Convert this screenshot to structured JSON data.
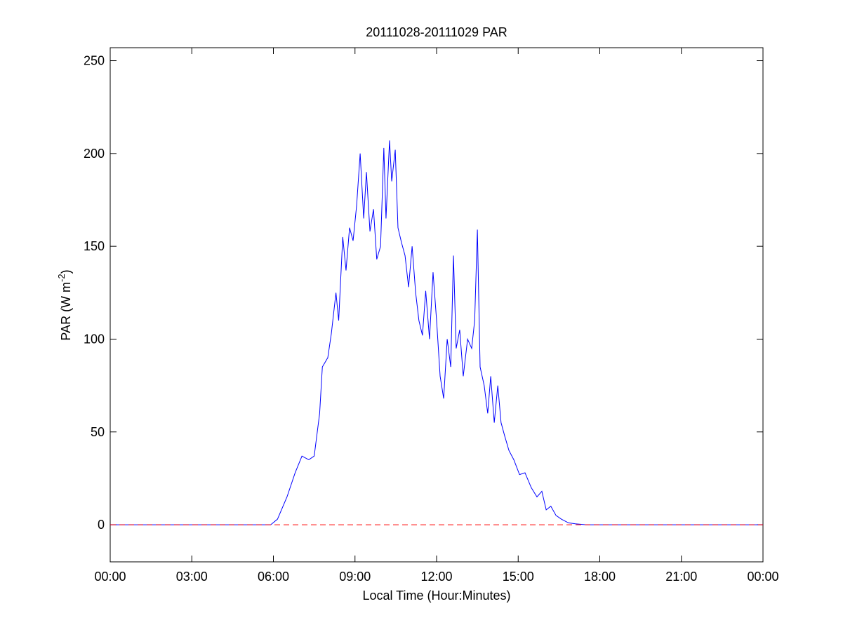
{
  "chart_data": {
    "type": "line",
    "title": "20111028-20111029 PAR",
    "xlabel": "Local Time (Hour:Minutes)",
    "ylabel": {
      "text": "PAR (W m",
      "superscript": "-2",
      "suffix": ")"
    },
    "xlim": [
      0,
      24
    ],
    "xticks": [
      {
        "value": 0,
        "label": "00:00"
      },
      {
        "value": 3,
        "label": "03:00"
      },
      {
        "value": 6,
        "label": "06:00"
      },
      {
        "value": 9,
        "label": "09:00"
      },
      {
        "value": 12,
        "label": "12:00"
      },
      {
        "value": 15,
        "label": "15:00"
      },
      {
        "value": 18,
        "label": "18:00"
      },
      {
        "value": 21,
        "label": "21:00"
      },
      {
        "value": 24,
        "label": "00:00"
      }
    ],
    "ylim": [
      -20,
      257
    ],
    "yticks": [
      0,
      50,
      100,
      150,
      200,
      250
    ],
    "grid": false,
    "series": [
      {
        "color": "#0000ff",
        "dashed": false,
        "x": [
          0,
          5.9,
          6.15,
          6.5,
          6.8,
          7.05,
          7.3,
          7.5,
          7.7,
          7.8,
          8.0,
          8.13,
          8.3,
          8.4,
          8.55,
          8.67,
          8.8,
          8.93,
          9.06,
          9.19,
          9.32,
          9.42,
          9.55,
          9.68,
          9.8,
          9.94,
          10.06,
          10.14,
          10.27,
          10.35,
          10.48,
          10.58,
          10.71,
          10.84,
          10.97,
          11.1,
          11.23,
          11.35,
          11.48,
          11.6,
          11.74,
          11.87,
          12.0,
          12.13,
          12.26,
          12.39,
          12.52,
          12.62,
          12.72,
          12.85,
          12.98,
          13.14,
          13.29,
          13.4,
          13.5,
          13.6,
          13.75,
          13.88,
          13.99,
          14.12,
          14.25,
          14.37,
          14.5,
          14.66,
          14.84,
          15.05,
          15.25,
          15.48,
          15.69,
          15.87,
          16.03,
          16.2,
          16.39,
          16.59,
          16.85,
          17.1,
          17.5,
          24
        ],
        "values": [
          0,
          0,
          3,
          15,
          28,
          37,
          35,
          37,
          60,
          85,
          90,
          103,
          125,
          110,
          155,
          137,
          160,
          153,
          172,
          200,
          165,
          190,
          158,
          170,
          143,
          150,
          203,
          165,
          207,
          185,
          202,
          160,
          152,
          145,
          128,
          150,
          125,
          110,
          102,
          126,
          100,
          136,
          110,
          80,
          68,
          100,
          85,
          145,
          95,
          105,
          80,
          100,
          95,
          110,
          159,
          85,
          75,
          60,
          80,
          55,
          75,
          55,
          48,
          40,
          35,
          27,
          28,
          20,
          15,
          18,
          8,
          10,
          5,
          3,
          1,
          0.5,
          0,
          0
        ]
      },
      {
        "color": "#ff0000",
        "dashed": true,
        "x": [
          0,
          24
        ],
        "values": [
          0,
          0
        ]
      }
    ]
  }
}
